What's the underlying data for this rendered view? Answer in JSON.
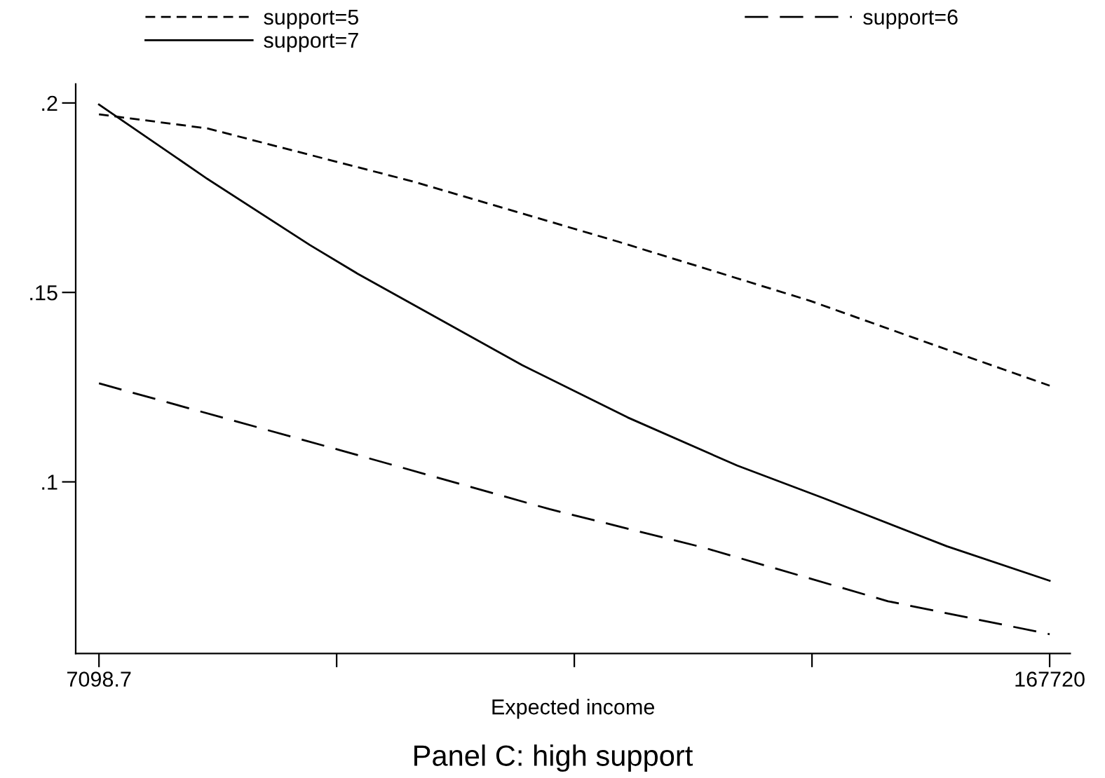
{
  "chart_data": {
    "type": "line",
    "title": "Panel C: high support",
    "xlabel": "Expected income",
    "xlim": [
      3164,
      171191
    ],
    "ylim": [
      0.0547,
      0.205
    ],
    "xticks": [
      7098.7,
      {
        "value": 47254,
        "label": null
      },
      {
        "value": 87409.35,
        "label": null
      },
      {
        "value": 127565,
        "label": null
      },
      167720
    ],
    "yticks": [
      {
        "value": 0.1,
        "label": ".1"
      },
      {
        "value": 0.15,
        "label": ".15"
      },
      {
        "value": 0.2,
        "label": ".2"
      }
    ],
    "grid": false,
    "legend": "top",
    "marker": "none",
    "series": [
      {
        "name": "support=5",
        "color": "#000000",
        "line_style": "dashed",
        "x": [
          7098.7,
          25382,
          60099,
          94816,
          127217,
          148047,
          167720
        ],
        "values": [
          0.197,
          0.1933,
          0.1793,
          0.1634,
          0.1478,
          0.1362,
          0.1254
        ]
      },
      {
        "name": "support=6",
        "color": "#000000",
        "line_style": "longdash",
        "x": [
          7098.7,
          47763,
          83241,
          109393,
          140405,
          167720
        ],
        "values": [
          0.126,
          0.1084,
          0.0928,
          0.0826,
          0.0685,
          0.0598
        ]
      },
      {
        "name": "support=7",
        "color": "#000000",
        "line_style": "solid",
        "x": [
          7098.7,
          25382,
          42740,
          50842,
          78614,
          96433,
          114944,
          129528,
          150357,
          167720
        ],
        "values": [
          0.1996,
          0.18,
          0.1625,
          0.1549,
          0.1308,
          0.117,
          0.1043,
          0.0957,
          0.083,
          0.0739
        ]
      }
    ]
  }
}
